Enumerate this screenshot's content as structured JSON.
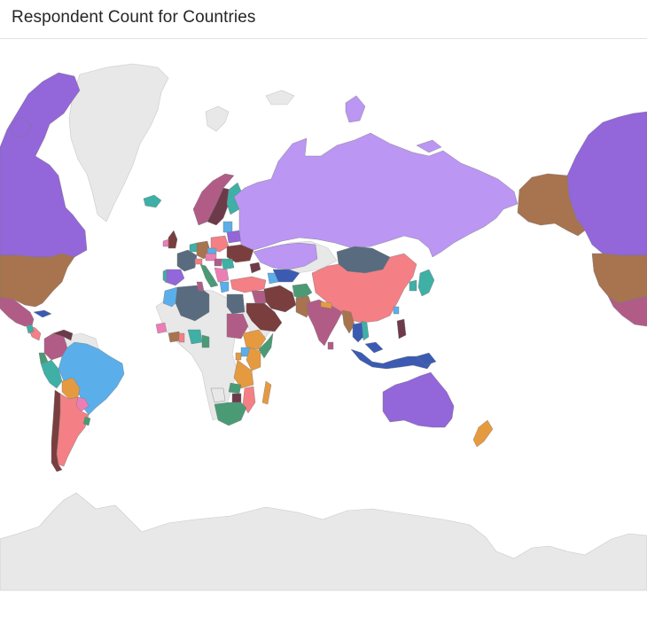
{
  "title": "Respondent Count for Countries",
  "colors": {
    "no_data": "#e8e8e8",
    "background": "#ffffff",
    "purple": "#9366d9",
    "lavender": "#bb96f3",
    "brown": "#a8734f",
    "blue": "#5aaeea",
    "salmon": "#f47f85",
    "slate": "#586b7f",
    "magenta": "#b15c86",
    "teal": "#3eb0a6",
    "orange": "#e69a40",
    "green": "#4a9a76",
    "pink": "#ec7eb5",
    "dark_brown": "#7a3e3e",
    "navy": "#3b5bb3",
    "maroon": "#6d3a4a"
  }
}
